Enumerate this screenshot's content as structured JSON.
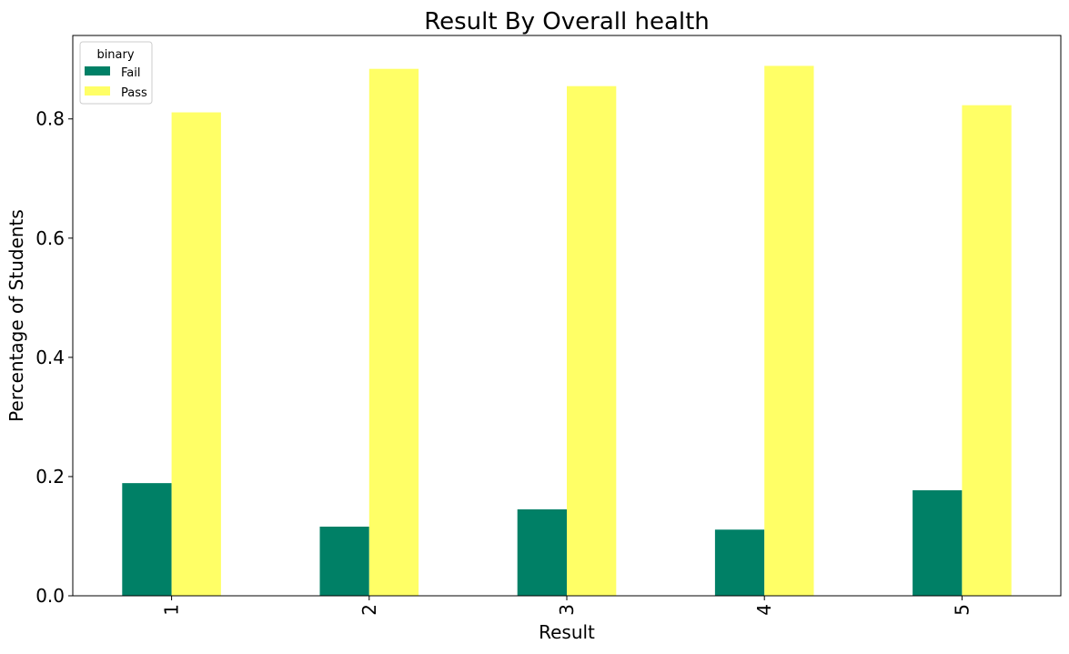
{
  "chart_data": {
    "type": "bar",
    "title": "Result By Overall health",
    "xlabel": "Result",
    "ylabel": "Percentage of Students",
    "categories": [
      "1",
      "2",
      "3",
      "4",
      "5"
    ],
    "series": [
      {
        "name": "Fail",
        "values": [
          0.189,
          0.116,
          0.145,
          0.111,
          0.177
        ],
        "color": "#008066"
      },
      {
        "name": "Pass",
        "values": [
          0.811,
          0.884,
          0.855,
          0.889,
          0.823
        ],
        "color": "#ffff66"
      }
    ],
    "ylim": [
      0,
      0.94
    ],
    "yticks": [
      "0.0",
      "0.2",
      "0.4",
      "0.6",
      "0.8"
    ],
    "grid": false,
    "legend": {
      "title": "binary",
      "placement": "upper-left"
    }
  }
}
